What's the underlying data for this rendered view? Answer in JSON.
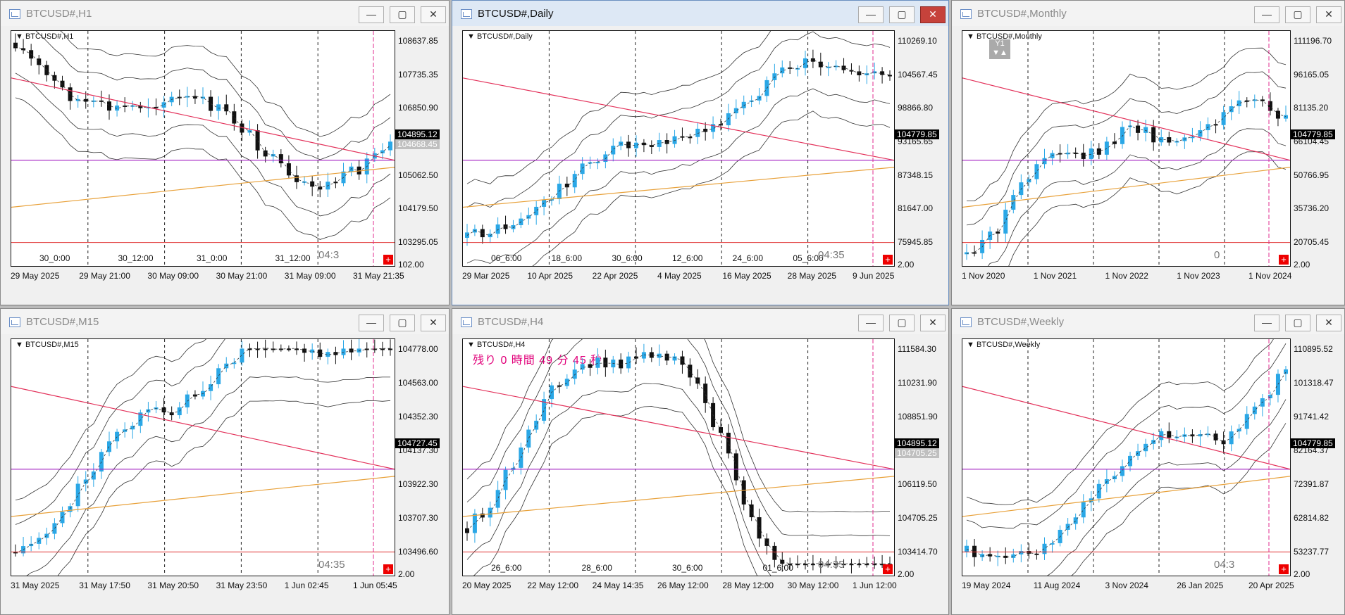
{
  "colors": {
    "bull": "#2aa7e6",
    "bear": "#111111",
    "resistance": "#e3315a",
    "support": "#e8a13a",
    "level_purple": "#a21fc1",
    "level_red": "#e03030",
    "period_sep": "#e12b8f"
  },
  "windows": [
    {
      "id": "w-h1",
      "title": "BTCUSD#,H1",
      "symbol": "BTCUSD#,H1",
      "active": false,
      "y_labels": [
        "108637.85",
        "107735.35",
        "106850.90",
        "105966.45",
        "105062.50",
        "104179.50",
        "103295.05",
        "102.00"
      ],
      "x_labels": [
        "29 May 2025",
        "29 May 21:00",
        "30 May 09:00",
        "30 May 21:00",
        "31 May 09:00",
        "31 May 21:35"
      ],
      "x_top_labels": [
        "30_0:00",
        "30_12:00",
        "31_0:00",
        "31_12:00"
      ],
      "price_current": "104895.12",
      "price_bid": "104668.45",
      "timer": "04:3"
    },
    {
      "id": "w-daily",
      "title": "BTCUSD#,Daily",
      "symbol": "BTCUSD#,Daily",
      "active": true,
      "y_labels": [
        "110269.10",
        "104567.45",
        "98866.80",
        "93165.65",
        "87348.15",
        "81647.00",
        "75945.85",
        "2.00"
      ],
      "x_labels": [
        "29 Mar 2025",
        "10 Apr 2025",
        "22 Apr 2025",
        "4 May 2025",
        "16 May 2025",
        "28 May 2025",
        "9 Jun 2025"
      ],
      "x_top_labels": [
        "06_6:00",
        "18_6:00",
        "30_6:00",
        "12_6:00",
        "24_6:00",
        "05_6:00"
      ],
      "price_current": "104779.85",
      "timer": "04:35"
    },
    {
      "id": "w-monthly",
      "title": "BTCUSD#,Monthly",
      "symbol": "BTCUSD#,Monthly",
      "active": false,
      "y_labels": [
        "111196.70",
        "96165.05",
        "81135.20",
        "66104.45",
        "50766.95",
        "35736.20",
        "20705.45",
        "2.00"
      ],
      "x_labels": [
        "1 Nov 2020",
        "1 Nov 2021",
        "1 Nov 2022",
        "1 Nov 2023",
        "1 Nov 2024"
      ],
      "price_current": "104779.85",
      "badge": "Y1",
      "timer": "0"
    },
    {
      "id": "w-m15",
      "title": "BTCUSD#,M15",
      "symbol": "BTCUSD#,M15",
      "active": false,
      "y_labels": [
        "104778.00",
        "104563.00",
        "104352.30",
        "104137.30",
        "103922.30",
        "103707.30",
        "103496.60",
        "2.00"
      ],
      "x_labels": [
        "31 May 2025",
        "31 May 17:50",
        "31 May 20:50",
        "31 May 23:50",
        "1 Jun 02:45",
        "1 Jun 05:45"
      ],
      "price_current": "104727.45",
      "timer": "04:35"
    },
    {
      "id": "w-h4",
      "title": "BTCUSD#,H4",
      "symbol": "BTCUSD#,H4",
      "active": false,
      "countdown_text": "残り 0 時間 49 分 45 秒",
      "y_labels": [
        "111584.30",
        "110231.90",
        "108851.90",
        "107499.50",
        "106119.50",
        "104705.25",
        "103414.70",
        "2.00"
      ],
      "x_labels": [
        "20 May 2025",
        "22 May 12:00",
        "24 May 14:35",
        "26 May 12:00",
        "28 May 12:00",
        "30 May 12:00",
        "1 Jun 12:00"
      ],
      "x_top_labels": [
        "26_6:00",
        "28_6:00",
        "30_6:00",
        "01_6:00"
      ],
      "price_current": "104895.12",
      "price_bid": "104705.25",
      "timer": "04:35"
    },
    {
      "id": "w-weekly",
      "title": "BTCUSD#,Weekly",
      "symbol": "BTCUSD#,Weekly",
      "active": false,
      "y_labels": [
        "110895.52",
        "101318.47",
        "91741.42",
        "82164.37",
        "72391.87",
        "62814.82",
        "53237.77",
        "2.00"
      ],
      "x_labels": [
        "19 May 2024",
        "11 Aug 2024",
        "3 Nov 2024",
        "26 Jan 2025",
        "20 Apr 2025"
      ],
      "price_current": "104779.85",
      "timer": "04:3"
    }
  ]
}
